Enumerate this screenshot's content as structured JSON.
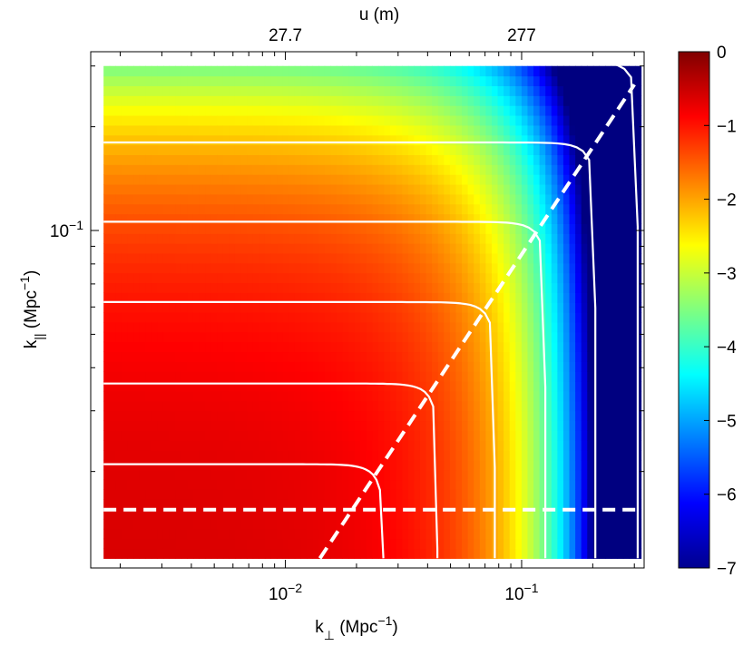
{
  "chart_data": {
    "type": "heatmap",
    "title": "",
    "xlabel": {
      "base": "k",
      "sub": "⊥",
      "units_prefix": " (Mpc",
      "units_exp": "−1",
      "units_suffix": ")"
    },
    "ylabel": {
      "base": "k",
      "sub": "||",
      "units_prefix": " (Mpc",
      "units_exp": "−1",
      "units_suffix": ")"
    },
    "top_axis_label": "u (m)",
    "x_scale": "log",
    "y_scale": "log",
    "xlim": [
      0.0015,
      0.33
    ],
    "ylim": [
      0.0105,
      0.33
    ],
    "x_ticks": [
      {
        "value": 0.01,
        "base": "10",
        "exp": "−2"
      },
      {
        "value": 0.1,
        "base": "10",
        "exp": "−1"
      }
    ],
    "y_ticks": [
      {
        "value": 0.1,
        "base": "10",
        "exp": "−1"
      }
    ],
    "top_ticks": [
      {
        "k_perp": 0.01,
        "label": "27.7"
      },
      {
        "k_perp": 0.1,
        "label": "277"
      }
    ],
    "data_extent": {
      "x": [
        0.0017,
        0.32
      ],
      "y": [
        0.0112,
        0.3
      ]
    },
    "contours": [
      {
        "kperp_end": 0.026,
        "kpar_level": 0.021
      },
      {
        "kperp_end": 0.044,
        "kpar_level": 0.036
      },
      {
        "kperp_end": 0.077,
        "kpar_level": 0.062
      },
      {
        "kperp_end": 0.126,
        "kpar_level": 0.106
      },
      {
        "kperp_end": 0.205,
        "kpar_level": 0.18
      },
      {
        "kperp_end": 0.31,
        "kpar_level": 0.31
      }
    ],
    "horizontal_dashed_line": {
      "k_par": 0.0155,
      "x_range": [
        0.0017,
        0.32
      ]
    },
    "wedge_dashed_line": {
      "points": [
        [
          0.014,
          0.0112
        ],
        [
          0.3,
          0.265
        ]
      ]
    },
    "colorbar": {
      "min": -7,
      "max": 0,
      "ticks": [
        0,
        -1,
        -2,
        -3,
        -4,
        -5,
        -6,
        -7
      ],
      "tick_labels": [
        "0",
        "−1",
        "−2",
        "−3",
        "−4",
        "−5",
        "−6",
        "−7"
      ],
      "colormap": "jet"
    },
    "colors": {
      "contour": "#ffffff",
      "dashed": "#ffffff",
      "frame": "#000000"
    },
    "grid": false
  }
}
